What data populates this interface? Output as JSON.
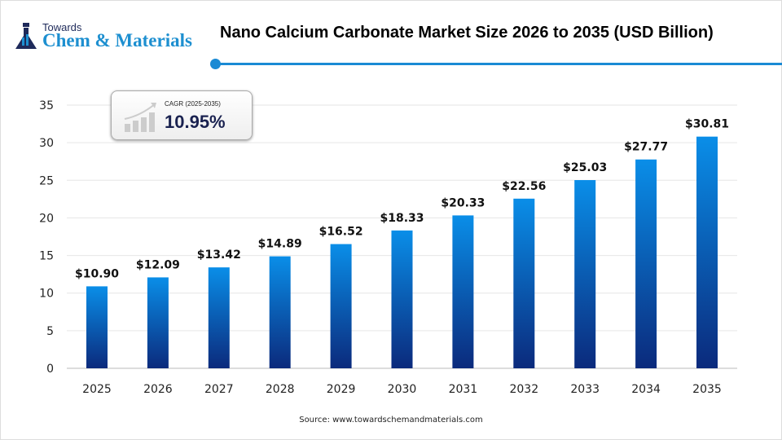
{
  "logo": {
    "line1": "Towards",
    "line2": "Chem & Materials"
  },
  "title": "Nano Calcium Carbonate Market Size 2026 to 2035 (USD Billion)",
  "cagr": {
    "label": "CAGR (2025-2035)",
    "value": "10.95%"
  },
  "source": "Source: www.towardschemandmaterials.com",
  "chart_data": {
    "type": "bar",
    "title": "Nano Calcium Carbonate Market Size 2026 to 2035 (USD Billion)",
    "categories": [
      "2025",
      "2026",
      "2027",
      "2028",
      "2029",
      "2030",
      "2031",
      "2032",
      "2033",
      "2034",
      "2035"
    ],
    "values": [
      10.9,
      12.09,
      13.42,
      14.89,
      16.52,
      18.33,
      20.33,
      22.56,
      25.03,
      27.77,
      30.81
    ],
    "data_labels": [
      "$10.90",
      "$12.09",
      "$13.42",
      "$14.89",
      "$16.52",
      "$18.33",
      "$20.33",
      "$22.56",
      "$25.03",
      "$27.77",
      "$30.81"
    ],
    "yticks": [
      0,
      5,
      10,
      15,
      20,
      25,
      30,
      35
    ],
    "ylim": [
      0,
      35
    ],
    "grid": true,
    "colors": {
      "bar_top": "#0a8ee8",
      "bar_bottom": "#0b2a7c"
    }
  }
}
